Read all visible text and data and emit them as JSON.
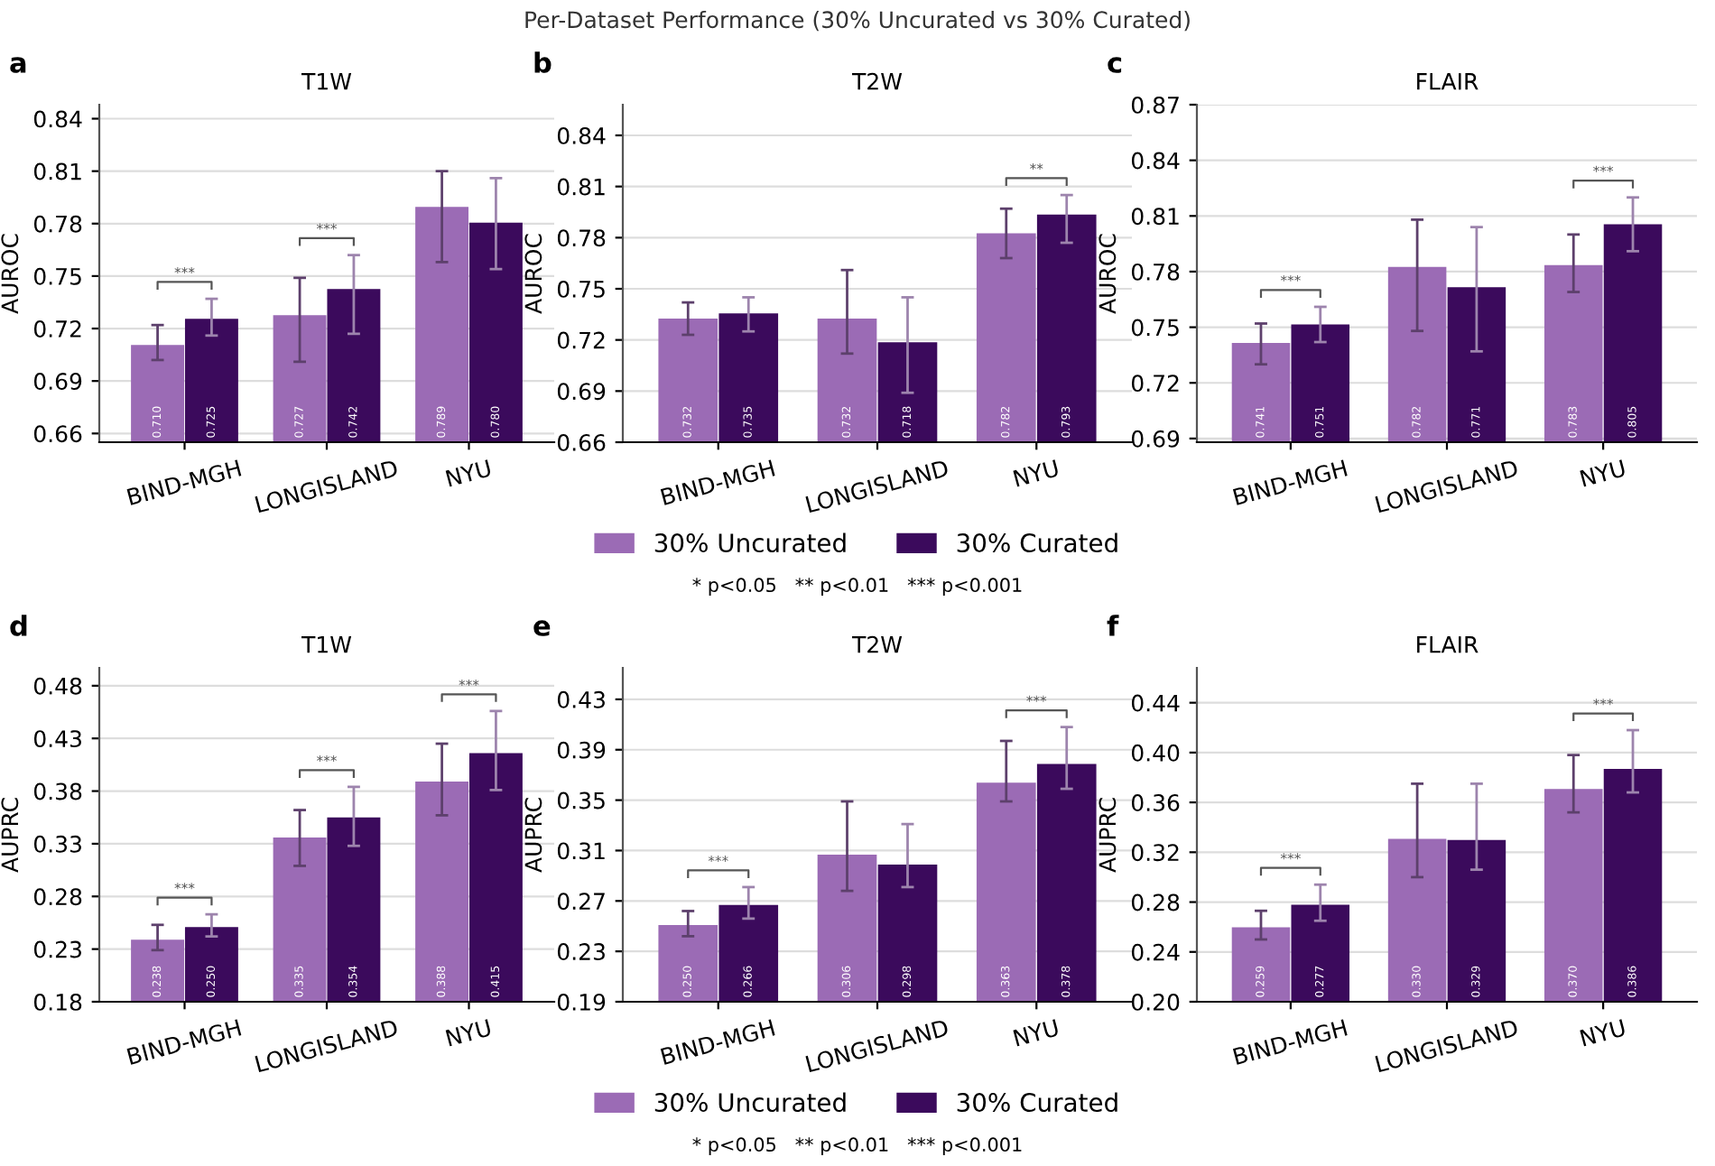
{
  "chart_data": [
    {
      "type": "bar",
      "title": "T1W",
      "ylabel": "AUROC",
      "categories": [
        "BIND-MGH",
        "LONGISLAND",
        "NYU"
      ],
      "ylim": [
        0.655,
        0.848
      ],
      "yticks": [
        0.66,
        0.69,
        0.72,
        0.75,
        0.78,
        0.81,
        0.84
      ],
      "grid": "y",
      "legend": "bottom",
      "series": [
        {
          "name": "30% Uncurated",
          "color": "#9b6bb5",
          "values": [
            0.71,
            0.727,
            0.789
          ],
          "errors": [
            [
              0.702,
              0.722
            ],
            [
              0.701,
              0.749
            ],
            [
              0.758,
              0.81
            ]
          ],
          "value_labels": [
            "0.710",
            "0.727",
            "0.789"
          ]
        },
        {
          "name": "30% Curated",
          "color": "#3b0a5c",
          "values": [
            0.725,
            0.742,
            0.78
          ],
          "errors": [
            [
              0.716,
              0.737
            ],
            [
              0.717,
              0.762
            ],
            [
              0.754,
              0.806
            ]
          ],
          "value_labels": [
            "0.725",
            "0.742",
            "0.780"
          ]
        }
      ],
      "annotations": [
        "a",
        "* p<0.05   ** p<0.01   *** p<0.001",
        "***",
        "***"
      ]
    },
    {
      "type": "bar",
      "title": "T2W",
      "ylabel": "AUROC",
      "categories": [
        "BIND-MGH",
        "LONGISLAND",
        "NYU"
      ],
      "ylim": [
        0.66,
        0.858
      ],
      "yticks": [
        0.66,
        0.69,
        0.72,
        0.75,
        0.78,
        0.81,
        0.84
      ],
      "grid": "y",
      "legend": "bottom",
      "series": [
        {
          "name": "30% Uncurated",
          "color": "#9b6bb5",
          "values": [
            0.732,
            0.732,
            0.782
          ],
          "errors": [
            [
              0.723,
              0.742
            ],
            [
              0.712,
              0.761
            ],
            [
              0.768,
              0.797
            ]
          ],
          "value_labels": [
            "0.732",
            "0.732",
            "0.782"
          ]
        },
        {
          "name": "30% Curated",
          "color": "#3b0a5c",
          "values": [
            0.735,
            0.718,
            0.793
          ],
          "errors": [
            [
              0.725,
              0.745
            ],
            [
              0.689,
              0.745
            ],
            [
              0.777,
              0.805
            ]
          ],
          "value_labels": [
            "0.735",
            "0.718",
            "0.793"
          ]
        }
      ],
      "annotations": [
        "b",
        "* p<0.05   ** p<0.01   *** p<0.001",
        "**"
      ]
    },
    {
      "type": "bar",
      "title": "FLAIR",
      "ylabel": "AUROC",
      "categories": [
        "BIND-MGH",
        "LONGISLAND",
        "NYU"
      ],
      "ylim": [
        0.688,
        0.87
      ],
      "yticks": [
        0.69,
        0.72,
        0.75,
        0.78,
        0.81,
        0.84,
        0.87
      ],
      "grid": "y",
      "series": [
        {
          "color": "#9b6bb5",
          "values": [
            0.741,
            0.782,
            0.783
          ],
          "errors": [
            [
              0.73,
              0.752
            ],
            [
              0.748,
              0.808
            ],
            [
              0.769,
              0.8
            ]
          ],
          "value_labels": [
            "0.741",
            "0.782",
            "0.783"
          ]
        },
        {
          "color": "#3b0a5c",
          "values": [
            0.751,
            0.771,
            0.805
          ],
          "errors": [
            [
              0.742,
              0.761
            ],
            [
              0.737,
              0.804
            ],
            [
              0.791,
              0.82
            ]
          ],
          "value_labels": [
            "0.751",
            "0.771",
            "0.805"
          ]
        }
      ],
      "annotations": [
        "c",
        "Per-Dataset Performance (30% Uncurated vs 30% Curated)",
        "***",
        "***"
      ]
    },
    {
      "type": "bar",
      "title": "T1W",
      "ylabel": "AUPRC",
      "categories": [
        "BIND-MGH",
        "LONGISLAND",
        "NYU"
      ],
      "ylim": [
        0.18,
        0.497
      ],
      "yticks": [
        0.18,
        0.23,
        0.28,
        0.33,
        0.38,
        0.43,
        0.48
      ],
      "grid": "y",
      "series": [
        {
          "color": "#9b6bb5",
          "values": [
            0.238,
            0.335,
            0.388
          ],
          "errors": [
            [
              0.229,
              0.253
            ],
            [
              0.309,
              0.362
            ],
            [
              0.357,
              0.425
            ]
          ],
          "value_labels": [
            "0.238",
            "0.335",
            "0.388"
          ]
        },
        {
          "color": "#3b0a5c",
          "values": [
            0.25,
            0.354,
            0.415
          ],
          "errors": [
            [
              0.242,
              0.263
            ],
            [
              0.328,
              0.384
            ],
            [
              0.381,
              0.456
            ]
          ],
          "value_labels": [
            "0.250",
            "0.354",
            "0.415"
          ]
        }
      ],
      "annotations": [
        "d",
        "***",
        "***",
        "***"
      ]
    },
    {
      "type": "bar",
      "title": "T2W",
      "ylabel": "AUPRC",
      "categories": [
        "BIND-MGH",
        "LONGISLAND",
        "NYU"
      ],
      "ylim": [
        0.19,
        0.455
      ],
      "yticks": [
        0.19,
        0.23,
        0.27,
        0.31,
        0.35,
        0.39,
        0.43
      ],
      "grid": "y",
      "series": [
        {
          "color": "#9b6bb5",
          "values": [
            0.25,
            0.306,
            0.363
          ],
          "errors": [
            [
              0.242,
              0.262
            ],
            [
              0.278,
              0.349
            ],
            [
              0.349,
              0.397
            ]
          ],
          "value_labels": [
            "0.250",
            "0.306",
            "0.363"
          ]
        },
        {
          "color": "#3b0a5c",
          "values": [
            0.266,
            0.298,
            0.378
          ],
          "errors": [
            [
              0.256,
              0.281
            ],
            [
              0.281,
              0.331
            ],
            [
              0.359,
              0.408
            ]
          ],
          "value_labels": [
            "0.266",
            "0.298",
            "0.378"
          ]
        }
      ],
      "annotations": [
        "e",
        "***",
        "***"
      ]
    },
    {
      "type": "bar",
      "title": "FLAIR",
      "ylabel": "AUPRC",
      "categories": [
        "BIND-MGH",
        "LONGISLAND",
        "NYU"
      ],
      "ylim": [
        0.2,
        0.468
      ],
      "yticks": [
        {
          "value": 0.2,
          "label": "0.20"
        },
        0.24,
        0.28,
        0.32,
        0.36,
        {
          "value": 0.4,
          "label": "0.40"
        },
        0.44
      ],
      "grid": "y",
      "series": [
        {
          "color": "#9b6bb5",
          "values": [
            0.259,
            0.33,
            0.37
          ],
          "errors": [
            [
              0.25,
              0.273
            ],
            [
              0.3,
              0.375
            ],
            [
              0.352,
              0.398
            ]
          ],
          "value_labels": [
            "0.259",
            "0.330",
            "0.370"
          ]
        },
        {
          "color": "#3b0a5c",
          "values": [
            0.277,
            0.329,
            0.386
          ],
          "errors": [
            [
              0.265,
              0.294
            ],
            [
              0.306,
              0.375
            ],
            [
              0.368,
              0.418
            ]
          ],
          "value_labels": [
            "0.277",
            "0.329",
            "0.386"
          ]
        }
      ],
      "annotations": [
        "f",
        "***",
        "***"
      ]
    }
  ]
}
